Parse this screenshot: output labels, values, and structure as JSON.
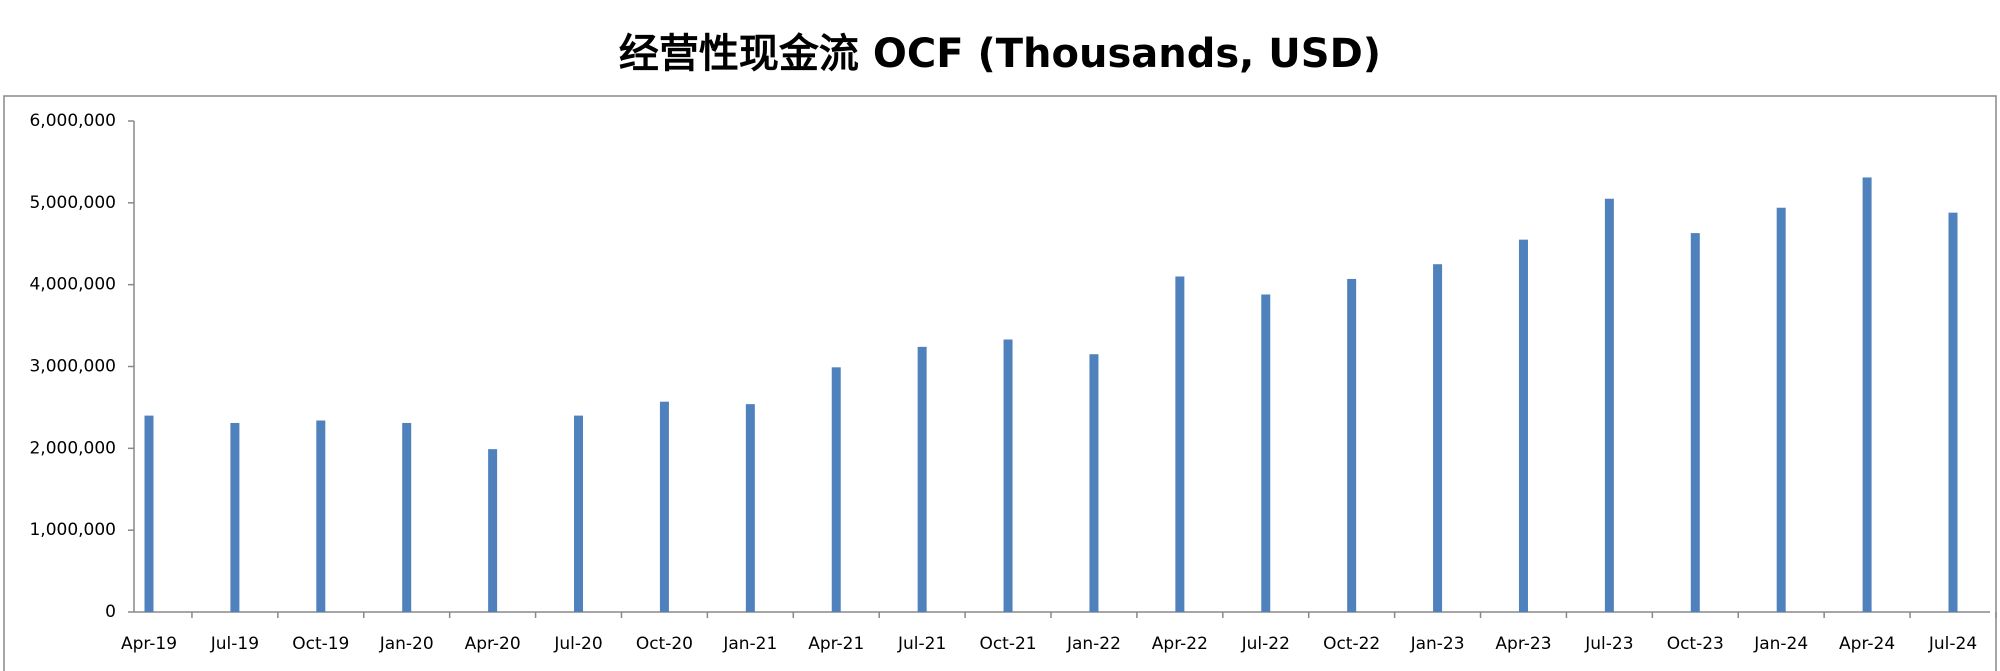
{
  "chart_data": {
    "type": "bar",
    "title": "经营性现金流 OCF (Thousands, USD)",
    "categories": [
      "Apr-19",
      "Jul-19",
      "Oct-19",
      "Jan-20",
      "Apr-20",
      "Jul-20",
      "Oct-20",
      "Jan-21",
      "Apr-21",
      "Jul-21",
      "Oct-21",
      "Jan-22",
      "Apr-22",
      "Jul-22",
      "Oct-22",
      "Jan-23",
      "Apr-23",
      "Jul-23",
      "Oct-23",
      "Jan-24",
      "Apr-24",
      "Jul-24"
    ],
    "values": [
      2400000,
      2310000,
      2340000,
      2310000,
      1990000,
      2400000,
      2570000,
      2540000,
      2990000,
      3240000,
      3330000,
      3150000,
      4100000,
      3880000,
      4070000,
      4250000,
      4550000,
      5050000,
      4630000,
      4940000,
      5310000,
      4880000
    ],
    "color": "#4f81bd",
    "ylim": [
      0,
      6000000
    ],
    "yticks": [
      0,
      {
        "value": 1000000,
        "label": "1,000,000"
      },
      {
        "value": 2000000,
        "label": "2,000,000"
      },
      {
        "value": 3000000,
        "label": "3,000,000"
      },
      {
        "value": 4000000,
        "label": "4,000,000"
      },
      {
        "value": 5000000,
        "label": "5,000,000"
      },
      {
        "value": 6000000,
        "label": "6,000,000"
      }
    ],
    "grid": false
  }
}
